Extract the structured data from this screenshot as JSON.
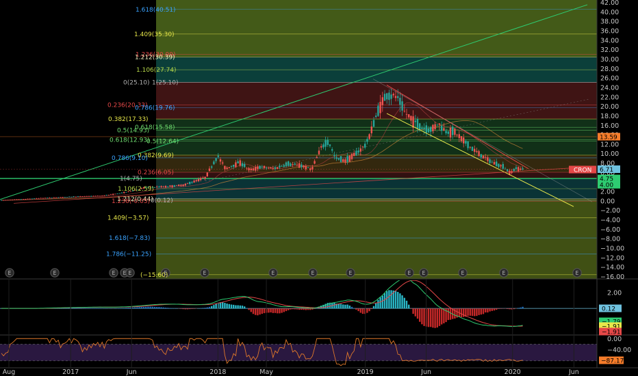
{
  "chart_data": [
    {
      "type": "candlestick",
      "symbol": "CRON",
      "price_axis": {
        "ticks": [
          "42.00",
          "40.00",
          "38.00",
          "36.00",
          "34.00",
          "32.00",
          "30.00",
          "28.00",
          "26.00",
          "24.00",
          "22.00",
          "20.00",
          "18.00",
          "16.00",
          "14.00",
          "12.00",
          "10.00",
          "8.00",
          "6.00",
          "4.00",
          "2.00",
          "0.00",
          "−2.00",
          "−4.00",
          "−6.00",
          "−8.00",
          "−10.00",
          "−12.00",
          "−14.00",
          "−16.00"
        ],
        "range": [
          -16.5,
          42.5
        ]
      },
      "time_axis": {
        "ticks": [
          "Aug",
          "2017",
          "Jun",
          "2018",
          "May",
          "2019",
          "Jun",
          "2020",
          "Jun"
        ],
        "tick_dates": [
          "2016-08-01",
          "2017-01-01",
          "2017-06-01",
          "2018-01-01",
          "2018-05-01",
          "2019-01-01",
          "2019-06-01",
          "2020-01-01",
          "2020-06-01"
        ]
      },
      "price_labels": [
        {
          "text": "13.59",
          "color": "#f57c2a",
          "value": 13.59
        },
        {
          "text": "CRON",
          "color": "#e54848",
          "value": 6.71
        },
        {
          "text": "6.71",
          "color": "#6fc2df",
          "value": 6.71
        },
        {
          "text": "4.75",
          "color": "#2ecc71",
          "value": 4.75
        },
        {
          "text": "4.00",
          "color": "#2ecc71",
          "value": 4.0
        }
      ],
      "fib_labels": [
        {
          "text": "1.618(40.51)",
          "color": "#3aa3ff",
          "value": 40.51
        },
        {
          "text": "1.409(35.30)",
          "color": "#e8e84a",
          "value": 35.3
        },
        {
          "text": "1.236(30.99)",
          "color": "#e54848",
          "value": 30.99
        },
        {
          "text": "1.212(30.39)",
          "color": "#f0f0c0",
          "value": 30.39
        },
        {
          "text": "1.106(27.74)",
          "color": "#b6d84a",
          "value": 27.74
        },
        {
          "text": "0(25.10)",
          "color": "#b0b0b0",
          "value": 25.1
        },
        {
          "text": "1(25.10)",
          "color": "#b0b0b0",
          "value": 25.1
        },
        {
          "text": "0.236(20.33)",
          "color": "#e54848",
          "value": 20.33
        },
        {
          "text": "0.786(19.76)",
          "color": "#3aa3ff",
          "value": 19.76
        },
        {
          "text": "0.382(17.33)",
          "color": "#e8e84a",
          "value": 17.33
        },
        {
          "text": "0.618(15.58)",
          "color": "#6fdc6f",
          "value": 15.58
        },
        {
          "text": "0.5(14.93)",
          "color": "#6fdc6f",
          "value": 14.93
        },
        {
          "text": "0.618(12.93)",
          "color": "#6fdc6f",
          "value": 12.93
        },
        {
          "text": "0.5(12.64)",
          "color": "#6fdc6f",
          "value": 12.64
        },
        {
          "text": "0.382(9.69)",
          "color": "#e8e84a",
          "value": 9.69
        },
        {
          "text": "0.786(9.10)",
          "color": "#3aa3ff",
          "value": 9.1
        },
        {
          "text": "0.236(6.05)",
          "color": "#e54848",
          "value": 6.05
        },
        {
          "text": "1(4.75)",
          "color": "#b0b0b0",
          "value": 4.75
        },
        {
          "text": "1.106(2.59)",
          "color": "#b6d84a",
          "value": 2.59
        },
        {
          "text": "1.212(0.44)",
          "color": "#f0f0c0",
          "value": 0.44
        },
        {
          "text": "1.236(-0.05)",
          "color": "#e54848",
          "value": -0.05
        },
        {
          "text": "0(0.12)",
          "color": "#b0b0b0",
          "value": 0.12
        },
        {
          "text": "1.409(−3.57)",
          "color": "#e8e84a",
          "value": -3.57
        },
        {
          "text": "1.618(−7.83)",
          "color": "#3aa3ff",
          "value": -7.83
        },
        {
          "text": "1.786(−11.25)",
          "color": "#3aa3ff",
          "value": -11.25
        },
        {
          "text": "(−15.60)",
          "color": "#e8e84a",
          "value": -15.6
        }
      ],
      "earnings_markers": {
        "label": "E",
        "count": 15
      },
      "colors": {
        "up": "#26a69a",
        "down": "#ef5350",
        "trend_green": "#2ecc71",
        "trend_yellow": "#e8e84a",
        "trend_red": "#e54848"
      }
    },
    {
      "type": "macd",
      "axis_ticks": [
        "2.00",
        "0.00"
      ],
      "range": [
        -3.2,
        3.4
      ],
      "labels": [
        {
          "text": "0.12",
          "color": "#6fc2df",
          "value": 0.12
        },
        {
          "text": "−1.79",
          "color": "#2ecc71",
          "value": -1.79
        },
        {
          "text": "−1.91",
          "color": "#e8e84a",
          "value": -1.91
        },
        {
          "text": "−1.91",
          "color": "#e54848",
          "value": -1.91
        }
      ]
    },
    {
      "type": "rsi",
      "axis_ticks": [
        "0.00",
        "−40.00"
      ],
      "range": [
        -100,
        8
      ],
      "labels": [
        {
          "text": "−87.17",
          "color": "#f57c2a",
          "value": -87.17
        }
      ]
    }
  ]
}
